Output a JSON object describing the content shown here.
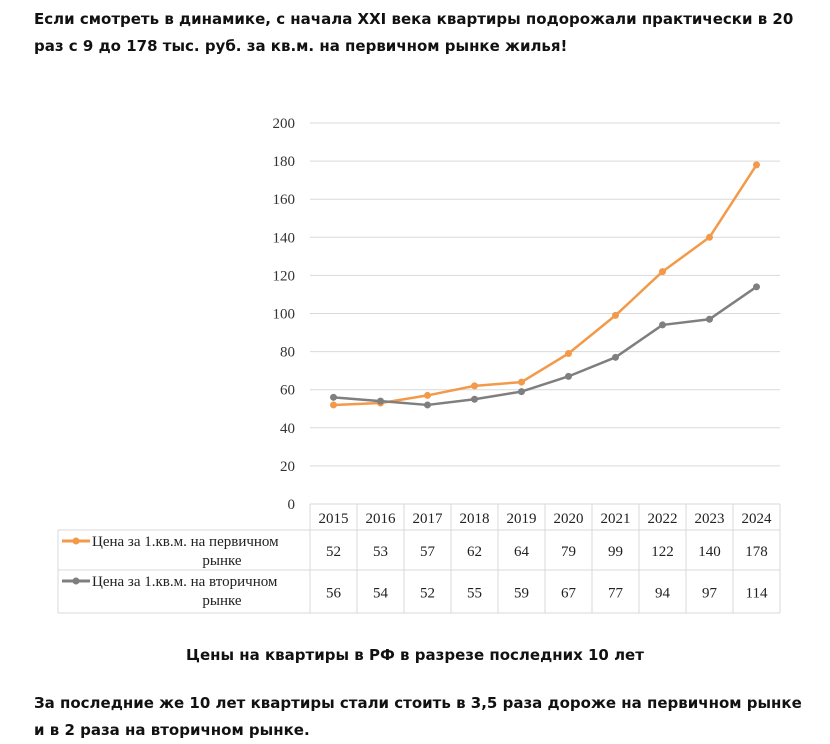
{
  "intro_text": "Если смотреть в динамике, с начала XXI века квартиры подорожали практически в 20 раз с 9 до 178 тыс. руб. за кв.м. на первичном рынке жилья!",
  "caption": "Цены на квартиры в РФ в разрезе последних 10 лет",
  "outro_text": "За последние же 10 лет квартиры стали стоить в 3,5 раза дороже на первичном рынке и в 2 раза на вторичном рынке.",
  "chart_data": {
    "type": "line",
    "title": "",
    "categories": [
      "2015",
      "2016",
      "2017",
      "2018",
      "2019",
      "2020",
      "2021",
      "2022",
      "2023",
      "2024"
    ],
    "series": [
      {
        "name": "Цена за 1.кв.м. на первичном рынке",
        "name_lines": [
          "Цена за 1.кв.м. на первичном",
          "рынке"
        ],
        "color": "#F39A4A",
        "values": [
          52,
          53,
          57,
          62,
          64,
          79,
          99,
          122,
          140,
          178
        ]
      },
      {
        "name": "Цена за 1.кв.м. на вторичном рынке",
        "name_lines": [
          "Цена за 1.кв.м. на вторичном",
          "рынке"
        ],
        "color": "#7F7F7F",
        "values": [
          56,
          54,
          52,
          55,
          59,
          67,
          77,
          94,
          97,
          114
        ]
      }
    ],
    "ylim": [
      0,
      200
    ],
    "yticks": [
      0,
      20,
      40,
      60,
      80,
      100,
      120,
      140,
      160,
      180,
      200
    ],
    "grid": true,
    "legend": "data-table-below"
  }
}
